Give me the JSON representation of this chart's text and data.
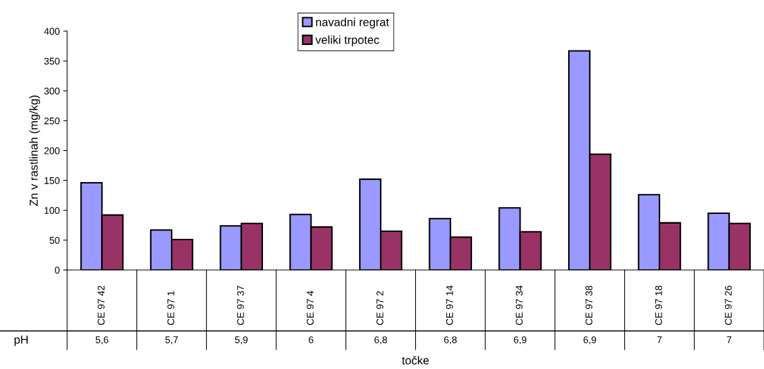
{
  "chart_data": {
    "type": "bar",
    "ylabel": "Zn v rastlinah (mg/kg)",
    "xlabel": "točke",
    "categories": [
      "CE 97 42",
      "CE 97 1",
      "CE 97 37",
      "CE 97 4",
      "CE 97 2",
      "CE 97 14",
      "CE 97 34",
      "CE 97 38",
      "CE 97 18",
      "CE 97 26"
    ],
    "series": [
      {
        "name": "navadni regrat",
        "color": "#9999ff",
        "values": [
          146,
          67,
          74,
          93,
          152,
          86,
          104,
          367,
          126,
          95
        ]
      },
      {
        "name": "veliki trpotec",
        "color": "#993366",
        "values": [
          92,
          51,
          78,
          72,
          65,
          55,
          64,
          194,
          79,
          78
        ]
      }
    ],
    "ylim": [
      0,
      400
    ],
    "yticks": [
      0,
      50,
      100,
      150,
      200,
      250,
      300,
      350,
      400
    ],
    "grid": false,
    "legend": "top",
    "annotations": [
      "pH",
      "5,6",
      "5,7",
      "5,9",
      "6",
      "6,8",
      "6,8",
      "6,9",
      "6,9",
      "7",
      "7"
    ]
  }
}
